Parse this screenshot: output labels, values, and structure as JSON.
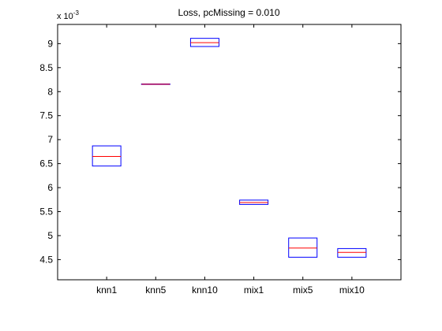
{
  "chart_data": {
    "type": "box",
    "title": "Loss, pcMissing = 0.010",
    "xlabel": "",
    "ylabel": "",
    "y_multiplier": "x 10",
    "y_multiplier_exponent": "-3",
    "ylim": [
      4.08,
      9.4
    ],
    "yticks": [
      4.5,
      5,
      5.5,
      6,
      6.5,
      7,
      7.5,
      8,
      8.5,
      9
    ],
    "ytick_labels": [
      "4.5",
      "5",
      "5.5",
      "6",
      "6.5",
      "7",
      "7.5",
      "8",
      "8.5",
      "9"
    ],
    "categories": [
      "knn1",
      "knn5",
      "knn10",
      "mix1",
      "mix5",
      "mix10"
    ],
    "boxes": [
      {
        "q1": 6.45,
        "median": 6.65,
        "q3": 6.87
      },
      {
        "q1": 8.15,
        "median": 8.155,
        "q3": 8.16
      },
      {
        "q1": 8.94,
        "median": 9.02,
        "q3": 9.11
      },
      {
        "q1": 5.65,
        "median": 5.69,
        "q3": 5.74
      },
      {
        "q1": 4.55,
        "median": 4.74,
        "q3": 4.95
      },
      {
        "q1": 4.55,
        "median": 4.65,
        "q3": 4.73
      }
    ],
    "box_color": "#0000ff",
    "median_color": "#ff0000",
    "grid": false,
    "legend": "none"
  }
}
